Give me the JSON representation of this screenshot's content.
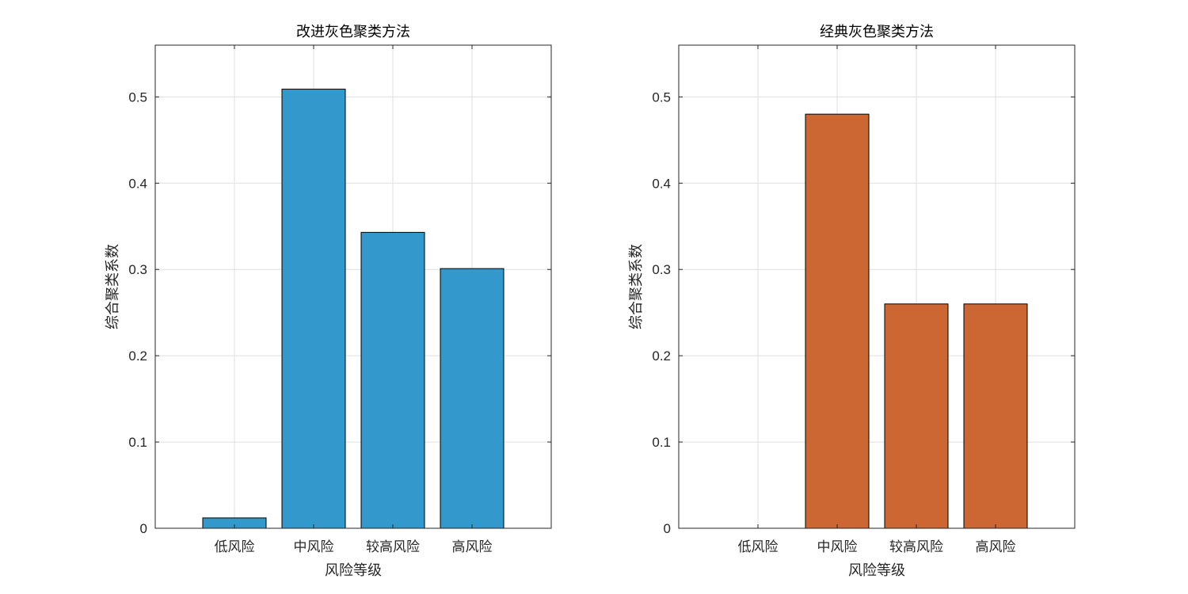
{
  "chart_data": [
    {
      "type": "bar",
      "title": "改进灰色聚类方法",
      "xlabel": "风险等级",
      "ylabel": "综合聚类系数",
      "categories": [
        "低风险",
        "中风险",
        "较高风险",
        "高风险"
      ],
      "values": [
        0.012,
        0.509,
        0.343,
        0.301
      ],
      "ylim": [
        0,
        0.56
      ],
      "yticks": [
        "0",
        "0.1",
        "0.2",
        "0.3",
        "0.4",
        "0.5"
      ],
      "grid": true,
      "bar_color": "#3398cc"
    },
    {
      "type": "bar",
      "title": "经典灰色聚类方法",
      "xlabel": "风险等级",
      "ylabel": "综合聚类系数",
      "categories": [
        "低风险",
        "中风险",
        "较高风险",
        "高风险"
      ],
      "values": [
        0,
        0.48,
        0.26,
        0.26
      ],
      "ylim": [
        0,
        0.56
      ],
      "yticks": [
        "0",
        "0.1",
        "0.2",
        "0.3",
        "0.4",
        "0.5"
      ],
      "grid": true,
      "bar_color": "#cc6633"
    }
  ]
}
